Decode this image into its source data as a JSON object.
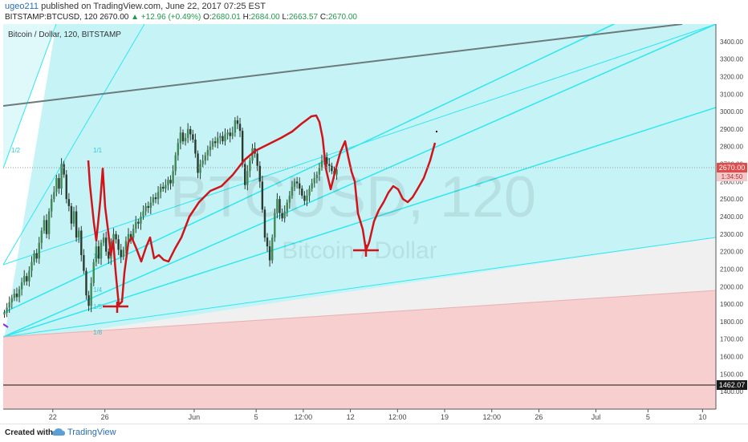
{
  "header": {
    "author": "ugeo211",
    "published_text": "published on TradingView.com, June 22, 2017 07:25 EST",
    "symbol": "BITSTAMP:BTCUSD, 120",
    "last": "2670.00",
    "change": "▲ +12.96 (+0.49%)",
    "o_label": "O:",
    "o_value": "2680.01",
    "h_label": "H:",
    "h_value": "2684.00",
    "l_label": "L:",
    "l_value": "2663.57",
    "c_label": "C:",
    "c_value": "2670.00"
  },
  "footer": {
    "created_with": "Created with",
    "brand": "TradingView"
  },
  "colors": {
    "candle_up": "#3f8a54",
    "candle_down": "#2b3a2f",
    "fan_line": "#2ee7f0",
    "fan_fill": "#c6f3f6",
    "red_zone": "#f7cfcf",
    "gray_zone": "#f0f0f0",
    "hand_drawn": "#d0141a",
    "resistance": "#6b7a7a",
    "price_tag": "#e24b4b"
  },
  "chart_data": {
    "type": "candlestick",
    "title": "Bitcoin / Dollar, 120, BITSTAMP",
    "watermark_symbol": "BTCUSD, 120",
    "watermark_name": "Bitcoin / Dollar",
    "ylim": [
      1300,
      3500
    ],
    "y_ticks": [
      1400,
      1500,
      1600,
      1700,
      1800,
      1900,
      2000,
      2100,
      2200,
      2300,
      2400,
      2500,
      2600,
      2700,
      2800,
      2900,
      3000,
      3100,
      3200,
      3300,
      3400
    ],
    "x_ticks": [
      {
        "label": "22",
        "i": 20
      },
      {
        "label": "26",
        "i": 41
      },
      {
        "label": "Jun",
        "i": 77
      },
      {
        "label": "5",
        "i": 102
      },
      {
        "label": "12:00",
        "i": 121
      },
      {
        "label": "12",
        "i": 140
      },
      {
        "label": "12:00",
        "i": 159
      },
      {
        "label": "19",
        "i": 178
      },
      {
        "label": "12:00",
        "i": 197
      },
      {
        "label": "26",
        "i": 216
      },
      {
        "label": "Jul",
        "i": 239
      },
      {
        "label": "5",
        "i": 260
      },
      {
        "label": "10",
        "i": 282
      }
    ],
    "close": [
      1850,
      1880,
      1910,
      1935,
      1960,
      1940,
      1985,
      2025,
      2060,
      2030,
      2090,
      2140,
      2190,
      2160,
      2250,
      2320,
      2380,
      2300,
      2430,
      2500,
      2540,
      2620,
      2560,
      2700,
      2640,
      2500,
      2460,
      2360,
      2430,
      2280,
      2320,
      2180,
      2090,
      1950,
      1890,
      2020,
      2140,
      2230,
      2160,
      2250,
      2280,
      2200,
      2160,
      2250,
      2300,
      2270,
      2210,
      2170,
      2210,
      2260,
      2300,
      2280,
      2330,
      2370,
      2360,
      2400,
      2430,
      2460,
      2450,
      2480,
      2510,
      2500,
      2540,
      2570,
      2560,
      2580,
      2610,
      2590,
      2660,
      2750,
      2820,
      2880,
      2830,
      2850,
      2900,
      2870,
      2840,
      2760,
      2650,
      2700,
      2720,
      2750,
      2780,
      2800,
      2830,
      2820,
      2850,
      2860,
      2830,
      2870,
      2880,
      2860,
      2880,
      2950,
      2930,
      2890,
      2700,
      2580,
      2660,
      2720,
      2790,
      2760,
      2690,
      2600,
      2440,
      2280,
      2230,
      2150,
      2280,
      2420,
      2500,
      2420,
      2390,
      2430,
      2480,
      2520,
      2570,
      2600,
      2590,
      2560,
      2520,
      2490,
      2520,
      2560,
      2590,
      2620,
      2640,
      2680,
      2720,
      2740,
      2700,
      2690,
      2660,
      2640,
      2670
    ],
    "annotations": {
      "price_marker": "2670.00",
      "countdown": "1:34:50",
      "support_level": "1462.07",
      "fan_labels": [
        "1/1",
        "1/2",
        "1/3",
        "1/4",
        "1/5",
        "1/8",
        "1/1"
      ]
    }
  }
}
